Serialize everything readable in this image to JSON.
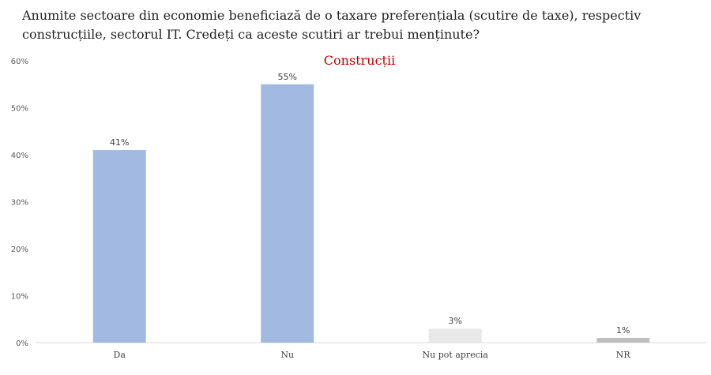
{
  "question": "Anumite sectoare din economie beneficiază de o taxare preferențiala (scutire de taxe), respectiv construcțiile, sectorul IT. Credeți ca aceste scutiri ar trebui menținute?",
  "chart_data": {
    "type": "bar",
    "title": "Construcții",
    "categories": [
      "Da",
      "Nu",
      "Nu pot aprecia",
      "NR"
    ],
    "values": [
      41,
      55,
      3,
      1
    ],
    "value_labels": [
      "41%",
      "55%",
      "3%",
      "1%"
    ],
    "bar_colors": [
      "#a2b9e2",
      "#a2b9e2",
      "#e8e8e8",
      "#bfbfbf"
    ],
    "ylim": [
      0,
      60
    ],
    "yticks": [
      0,
      10,
      20,
      30,
      40,
      50,
      60
    ],
    "ytick_labels": [
      "0%",
      "10%",
      "20%",
      "30%",
      "40%",
      "50%",
      "60%"
    ],
    "grid": false,
    "title_color": "#c00000"
  }
}
